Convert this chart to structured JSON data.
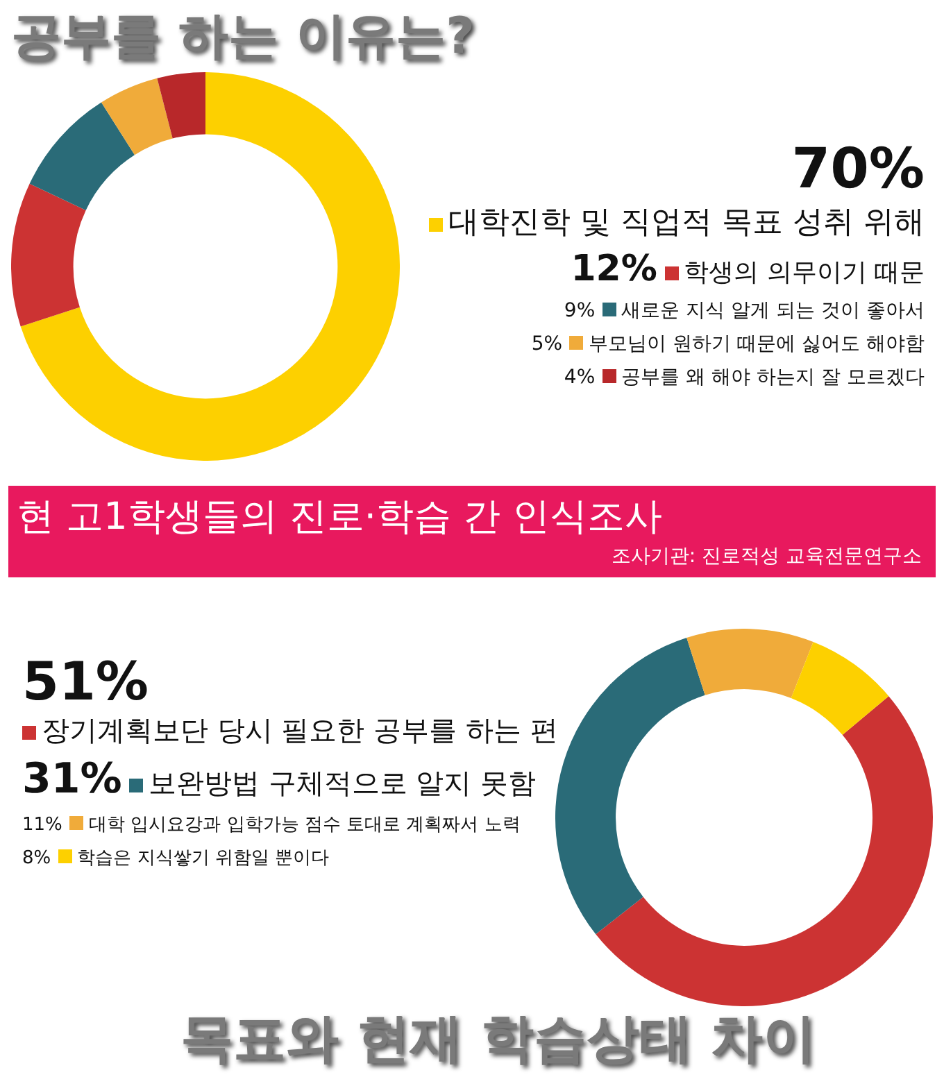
{
  "chart_data": [
    {
      "type": "donut",
      "title": "공부를 하는 이유는?",
      "categories": [
        "대학진학 및 직업적 목표 성취 위해",
        "학생의 의무이기 때문",
        "새로운 지식 알게 되는 것이 좋아서",
        "부모님이 원하기 때문에 싫어도 해야함",
        "공부를 왜 해야 하는지 잘 모르겠다"
      ],
      "values": [
        70,
        12,
        9,
        5,
        4
      ],
      "value_labels": [
        "70%",
        "12%",
        "9%",
        "5%",
        "4%"
      ],
      "colors": [
        "#fdd000",
        "#cc3333",
        "#2a6b78",
        "#f0ab3a",
        "#b8282a"
      ],
      "legend": "right",
      "annotations": [
        "현 고1학생들의 진로·학습 간 인식조사",
        "조사기관: 진로적성 교육전문연구소"
      ]
    },
    {
      "type": "donut",
      "title": "목표와 현재 학습상태 차이",
      "categories": [
        "장기계획보단 당시 필요한 공부를 하는 편",
        "보완방법 구체적으로 알지 못함",
        "대학 입시요강과 입학가능 점수 토대로 계획짜서 노력",
        "학습은 지식쌓기 위함일 뿐이다"
      ],
      "values": [
        51,
        31,
        11,
        8
      ],
      "value_labels": [
        "51%",
        "31%",
        "11%",
        "8%"
      ],
      "colors": [
        "#cc3333",
        "#2a6b78",
        "#f0ab3a",
        "#fdd000"
      ],
      "legend": "left"
    }
  ]
}
